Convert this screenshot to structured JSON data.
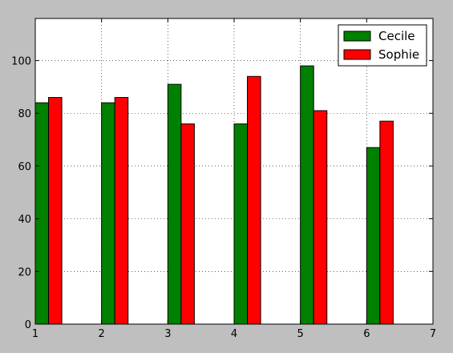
{
  "chart_data": {
    "type": "bar",
    "x": [
      1,
      2,
      3,
      4,
      5,
      6
    ],
    "series": [
      {
        "name": "Cecile",
        "values": [
          84,
          84,
          91,
          76,
          98,
          67
        ],
        "color": "#008000"
      },
      {
        "name": "Sophie",
        "values": [
          86,
          86,
          76,
          94,
          81,
          77
        ],
        "color": "#ff0000"
      }
    ],
    "title": "",
    "xlabel": "",
    "ylabel": "",
    "xlim": [
      1,
      7
    ],
    "ylim": [
      0,
      116
    ],
    "xticks": [
      1,
      2,
      3,
      4,
      5,
      6,
      7
    ],
    "yticks": [
      0,
      20,
      40,
      60,
      80,
      100
    ],
    "grid": true,
    "legend": "top-right",
    "plot_background": "#ffffff",
    "figure_background": "#bfbfbf"
  }
}
